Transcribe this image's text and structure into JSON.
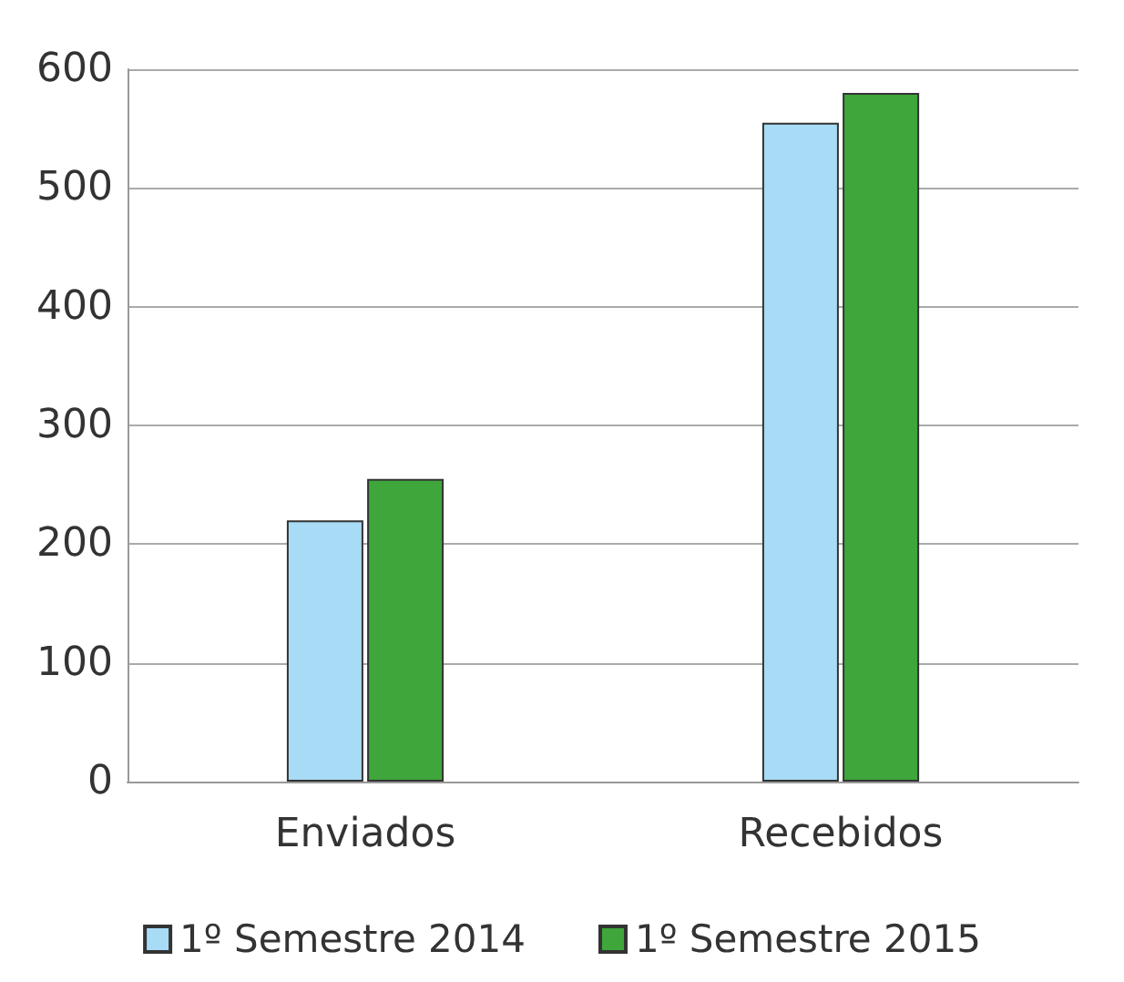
{
  "chart_data": {
    "type": "bar",
    "categories": [
      "Enviados",
      "Recebidos"
    ],
    "series": [
      {
        "name": "1º Semestre 2014",
        "color": "#a8dcf6",
        "values": [
          220,
          555
        ]
      },
      {
        "name": "1º Semestre 2015",
        "color": "#3ea63a",
        "values": [
          255,
          580
        ]
      }
    ],
    "ylim": [
      0,
      600
    ],
    "yticks": [
      0,
      100,
      200,
      300,
      400,
      500,
      600
    ],
    "grid": "y",
    "legend": "bottom"
  }
}
